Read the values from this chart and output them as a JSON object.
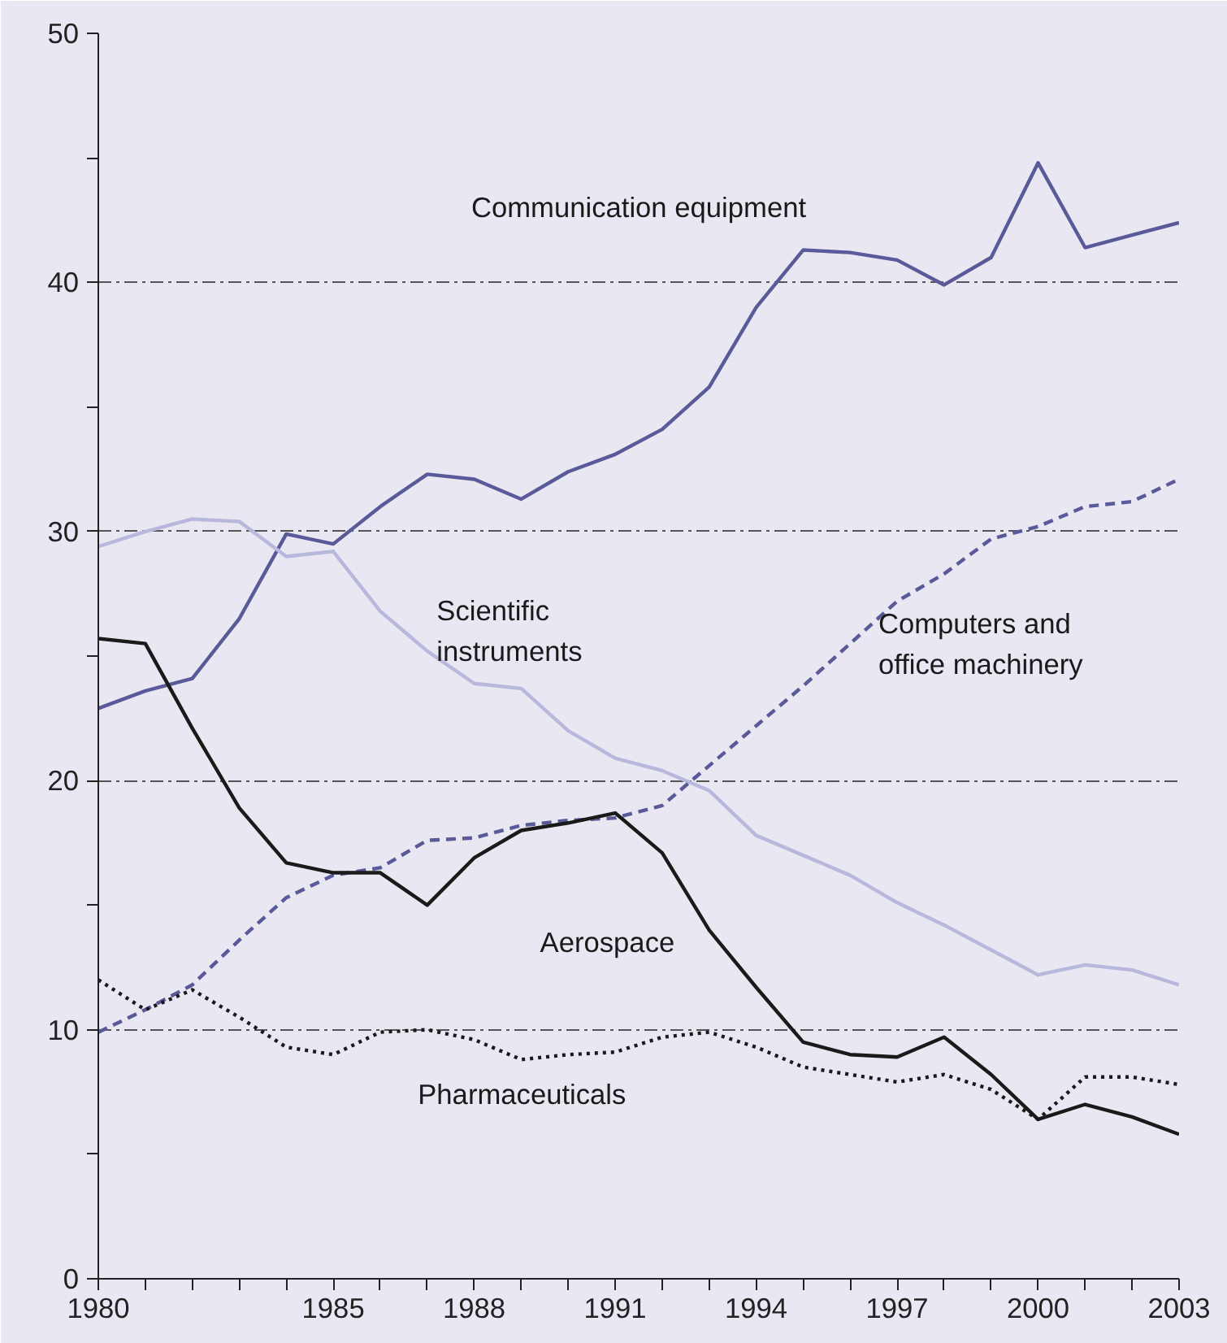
{
  "chart_data": {
    "type": "line",
    "x": [
      1980,
      1981,
      1982,
      1983,
      1984,
      1985,
      1986,
      1987,
      1988,
      1989,
      1990,
      1991,
      1992,
      1993,
      1994,
      1995,
      1996,
      1997,
      1998,
      1999,
      2000,
      2001,
      2002,
      2003
    ],
    "series": [
      {
        "name": "Communication equipment",
        "color": "#5a5a9a",
        "line_style": "solid",
        "values": [
          22.9,
          23.6,
          24.1,
          26.5,
          29.9,
          29.5,
          31,
          32.3,
          32.1,
          31.3,
          32.4,
          33.1,
          34.1,
          35.8,
          39,
          41.3,
          41.2,
          40.9,
          39.9,
          41,
          44.8,
          41.4,
          41.9,
          42.4
        ]
      },
      {
        "name": "Scientific instruments",
        "color": "#b8b8dc",
        "line_style": "solid",
        "values": [
          29.4,
          30,
          30.5,
          30.4,
          29,
          29.2,
          26.8,
          25.2,
          23.9,
          23.7,
          22,
          20.9,
          20.4,
          19.6,
          17.8,
          17,
          16.2,
          15.1,
          14.2,
          13.2,
          12.2,
          12.6,
          12.4,
          11.8
        ]
      },
      {
        "name": "Computers and office machinery",
        "color": "#5a5a9a",
        "line_style": "dashed",
        "values": [
          9.9,
          10.8,
          11.8,
          13.6,
          15.3,
          16.2,
          16.5,
          17.6,
          17.7,
          18.2,
          18.4,
          18.5,
          19,
          20.6,
          22.2,
          23.8,
          25.5,
          27.2,
          28.3,
          29.7,
          30.2,
          31,
          31.2,
          32.1
        ]
      },
      {
        "name": "Aerospace",
        "color": "#1a1a1a",
        "line_style": "solid",
        "values": [
          25.7,
          25.5,
          22.1,
          18.9,
          16.7,
          16.3,
          16.3,
          15,
          16.9,
          18,
          18.3,
          18.7,
          17.1,
          14,
          11.7,
          9.5,
          9,
          8.9,
          9.7,
          8.2,
          6.4,
          7,
          6.5,
          5.8
        ]
      },
      {
        "name": "Pharmaceuticals",
        "color": "#1a1a1a",
        "line_style": "dotted",
        "values": [
          12,
          10.8,
          11.6,
          10.5,
          9.3,
          9,
          9.9,
          10,
          9.6,
          8.8,
          9,
          9.1,
          9.7,
          9.9,
          9.3,
          8.5,
          8.2,
          7.9,
          8.2,
          7.6,
          6.4,
          8.1,
          8.1,
          7.8
        ]
      }
    ],
    "xlim": [
      1980,
      2003
    ],
    "xticks": [
      1980,
      {
        "value": 1981,
        "label": null
      },
      {
        "value": 1982,
        "label": null
      },
      {
        "value": 1983,
        "label": null
      },
      {
        "value": 1984,
        "label": null
      },
      1985,
      {
        "value": 1986,
        "label": null
      },
      {
        "value": 1987,
        "label": null
      },
      1988,
      {
        "value": 1989,
        "label": null
      },
      {
        "value": 1990,
        "label": null
      },
      1991,
      {
        "value": 1992,
        "label": null
      },
      {
        "value": 1993,
        "label": null
      },
      1994,
      {
        "value": 1995,
        "label": null
      },
      {
        "value": 1996,
        "label": null
      },
      1997,
      {
        "value": 1998,
        "label": null
      },
      {
        "value": 1999,
        "label": null
      },
      2000,
      {
        "value": 2001,
        "label": null
      },
      {
        "value": 2002,
        "label": null
      },
      2003
    ],
    "ylim": [
      0,
      50
    ],
    "yticks": [
      0,
      {
        "value": 5,
        "label": null
      },
      10,
      {
        "value": 15,
        "label": null
      },
      20,
      {
        "value": 25,
        "label": null
      },
      30,
      {
        "value": 35,
        "label": null
      },
      40,
      {
        "value": 45,
        "label": null
      },
      50
    ],
    "grid": "y",
    "legend": false
  }
}
